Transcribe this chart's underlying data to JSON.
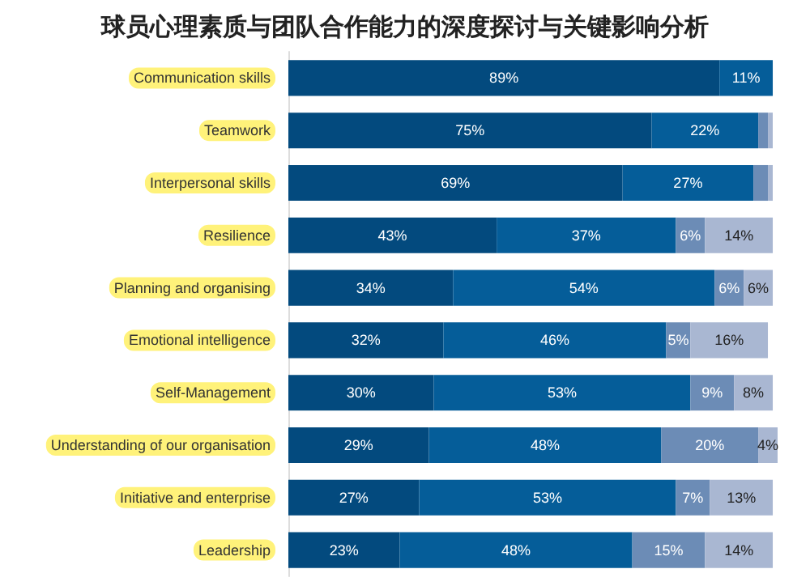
{
  "chart_data": {
    "type": "bar",
    "orientation": "horizontal",
    "stacked": true,
    "title": "球员心理素质与团队合作能力的深度探讨与关键影响分析",
    "categories": [
      "Communication skills",
      "Teamwork",
      "Interpersonal skills",
      "Resilience",
      "Planning and organising",
      "Emotional intelligence",
      "Self-Management",
      "Understanding of our organisation",
      "Initiative and enterprise",
      "Leadership"
    ],
    "series": [
      {
        "color": "#034a7e",
        "values": [
          89,
          75,
          69,
          43,
          34,
          32,
          30,
          29,
          27,
          23
        ],
        "value_labels": [
          "89%",
          "75%",
          "69%",
          "43%",
          "34%",
          "32%",
          "30%",
          "29%",
          "27%",
          "23%"
        ]
      },
      {
        "color": "#055d99",
        "values": [
          11,
          22,
          27,
          37,
          54,
          46,
          53,
          48,
          53,
          48
        ],
        "value_labels": [
          "11%",
          "22%",
          "27%",
          "37%",
          "54%",
          "46%",
          "53%",
          "48%",
          "53%",
          "48%"
        ]
      },
      {
        "color": "#6c8cb6",
        "values": [
          null,
          2,
          3,
          6,
          6,
          5,
          9,
          20,
          7,
          15
        ],
        "value_labels": [
          null,
          null,
          null,
          "6%",
          "6%",
          "5%",
          "9%",
          "20%",
          "7%",
          "15%"
        ]
      },
      {
        "color": "#a9b7d2",
        "values": [
          null,
          1,
          1,
          14,
          6,
          16,
          8,
          4,
          13,
          14
        ],
        "value_labels": [
          null,
          null,
          null,
          "14%",
          "6%",
          "16%",
          "8%",
          "4%",
          "13%",
          "14%"
        ]
      }
    ],
    "xlim": [
      0,
      101
    ],
    "tick_labels": "y",
    "grid": false
  }
}
